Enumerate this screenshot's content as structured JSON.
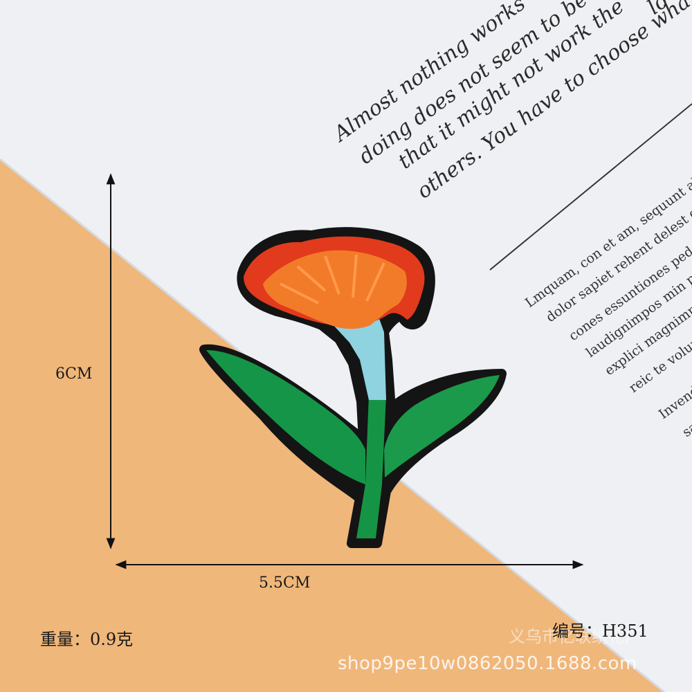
{
  "image": {
    "background_colors": {
      "orange_surface": "#f0b77a",
      "paper": "#eef0f4"
    },
    "subject": "embroidered-flower-patch",
    "patch_colors": {
      "border": "#141414",
      "petals_red": "#e23a1c",
      "petals_orange": "#f27b2a",
      "stem_blue": "#8fd2e0",
      "leaf_green": "#149447"
    }
  },
  "paper_text": {
    "quote": [
      "Almost nothing works",
      "doing does not seem to be",
      "that it might not work the",
      "others. You have to choose wha"
    ],
    "top_fragment": "lo",
    "body": [
      "Lmquam, con et am, sequunt aliqu",
      "dolor sapiet rehent delest qui",
      "cones essuntiones ped m",
      "laudignimpos min pro",
      "explici magnimp",
      "reic te volupt",
      "Invend",
      "sa"
    ]
  },
  "measurements": {
    "height": "6CM",
    "width": "5.5CM",
    "weight": "重量：0.9克",
    "code": "编号：H351"
  },
  "watermark": {
    "shop_cn": "义乌市亿联绣花厂",
    "url": "shop9pe10w0862050.1688.com"
  }
}
